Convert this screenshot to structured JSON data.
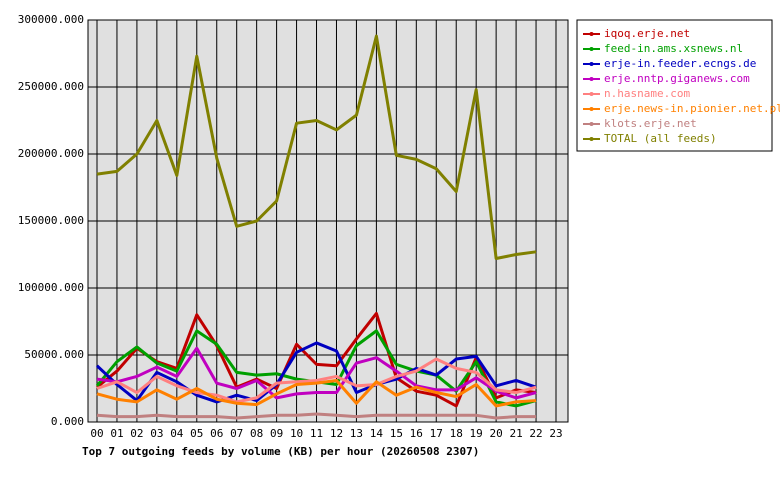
{
  "chart_data": {
    "type": "line",
    "title": "Top 7 outgoing feeds by volume (KB) per hour (20260508 2307)",
    "categories": [
      "00",
      "01",
      "02",
      "03",
      "04",
      "05",
      "06",
      "07",
      "08",
      "09",
      "10",
      "11",
      "12",
      "13",
      "14",
      "15",
      "16",
      "17",
      "18",
      "19",
      "20",
      "21",
      "22",
      "23"
    ],
    "ylim": [
      0,
      300000
    ],
    "yticks": [
      {
        "value": 0,
        "label": "0.000"
      },
      {
        "value": 50000,
        "label": "50000.000"
      },
      {
        "value": 100000,
        "label": "100000.000"
      },
      {
        "value": 150000,
        "label": "150000.000"
      },
      {
        "value": 200000,
        "label": "200000.000"
      },
      {
        "value": 250000,
        "label": "250000.000"
      },
      {
        "value": 300000,
        "label": "300000.000"
      }
    ],
    "grid": true,
    "legend": "right",
    "series": [
      {
        "name": "iqoq.erje.net",
        "color": "#c00000",
        "values": [
          26000,
          38000,
          55000,
          45000,
          40000,
          80000,
          57000,
          26000,
          32000,
          25000,
          58000,
          43000,
          42000,
          62000,
          81000,
          33000,
          23000,
          20000,
          12000,
          48000,
          18000,
          24000,
          22000,
          null
        ]
      },
      {
        "name": "feed-in.ams.xsnews.nl",
        "color": "#00a000",
        "values": [
          27000,
          45000,
          56000,
          44000,
          38000,
          68000,
          58000,
          37000,
          35000,
          36000,
          32000,
          30000,
          28000,
          57000,
          68000,
          43000,
          38000,
          35000,
          23000,
          45000,
          15000,
          12000,
          16000,
          null
        ]
      },
      {
        "name": "erje-in.feeder.ecngs.de",
        "color": "#0000c0",
        "values": [
          42000,
          28000,
          16000,
          37000,
          30000,
          20000,
          15000,
          20000,
          16000,
          28000,
          52000,
          59000,
          53000,
          22000,
          28000,
          32000,
          40000,
          35000,
          47000,
          49000,
          27000,
          31000,
          26000,
          null
        ]
      },
      {
        "name": "erje.nntp.giganews.com",
        "color": "#c000c0",
        "values": [
          32000,
          30000,
          34000,
          41000,
          34000,
          55000,
          29000,
          25000,
          31000,
          18000,
          21000,
          22000,
          22000,
          44000,
          48000,
          38000,
          27000,
          24000,
          24000,
          33000,
          23000,
          18000,
          22000,
          null
        ]
      },
      {
        "name": "n.hasname.com",
        "color": "#ff8080",
        "values": [
          25000,
          30000,
          22000,
          34000,
          27000,
          22000,
          20000,
          15000,
          18000,
          29000,
          30000,
          31000,
          34000,
          27000,
          28000,
          34000,
          38000,
          47000,
          40000,
          37000,
          24000,
          22000,
          26000,
          null
        ]
      },
      {
        "name": "erje.news-in.pionier.net.pl",
        "color": "#ff8000",
        "values": [
          21000,
          17000,
          15000,
          24000,
          17000,
          25000,
          17000,
          14000,
          13000,
          21000,
          28000,
          29000,
          31000,
          14000,
          30000,
          20000,
          26000,
          22000,
          19000,
          28000,
          12000,
          15000,
          16000,
          null
        ]
      },
      {
        "name": "klots.erje.net",
        "color": "#c08080",
        "values": [
          5000,
          4000,
          4000,
          5000,
          4000,
          4000,
          4000,
          3000,
          4000,
          5000,
          5000,
          6000,
          5000,
          4000,
          5000,
          5000,
          5000,
          5000,
          5000,
          5000,
          3000,
          4000,
          4000,
          null
        ]
      },
      {
        "name": "TOTAL (all feeds)",
        "color": "#808000",
        "values": [
          185000,
          187000,
          200000,
          225000,
          184000,
          273000,
          197000,
          146000,
          150000,
          165000,
          223000,
          225000,
          218000,
          229000,
          288000,
          199000,
          196000,
          189000,
          172000,
          248000,
          122000,
          125000,
          127000,
          null
        ]
      }
    ]
  }
}
